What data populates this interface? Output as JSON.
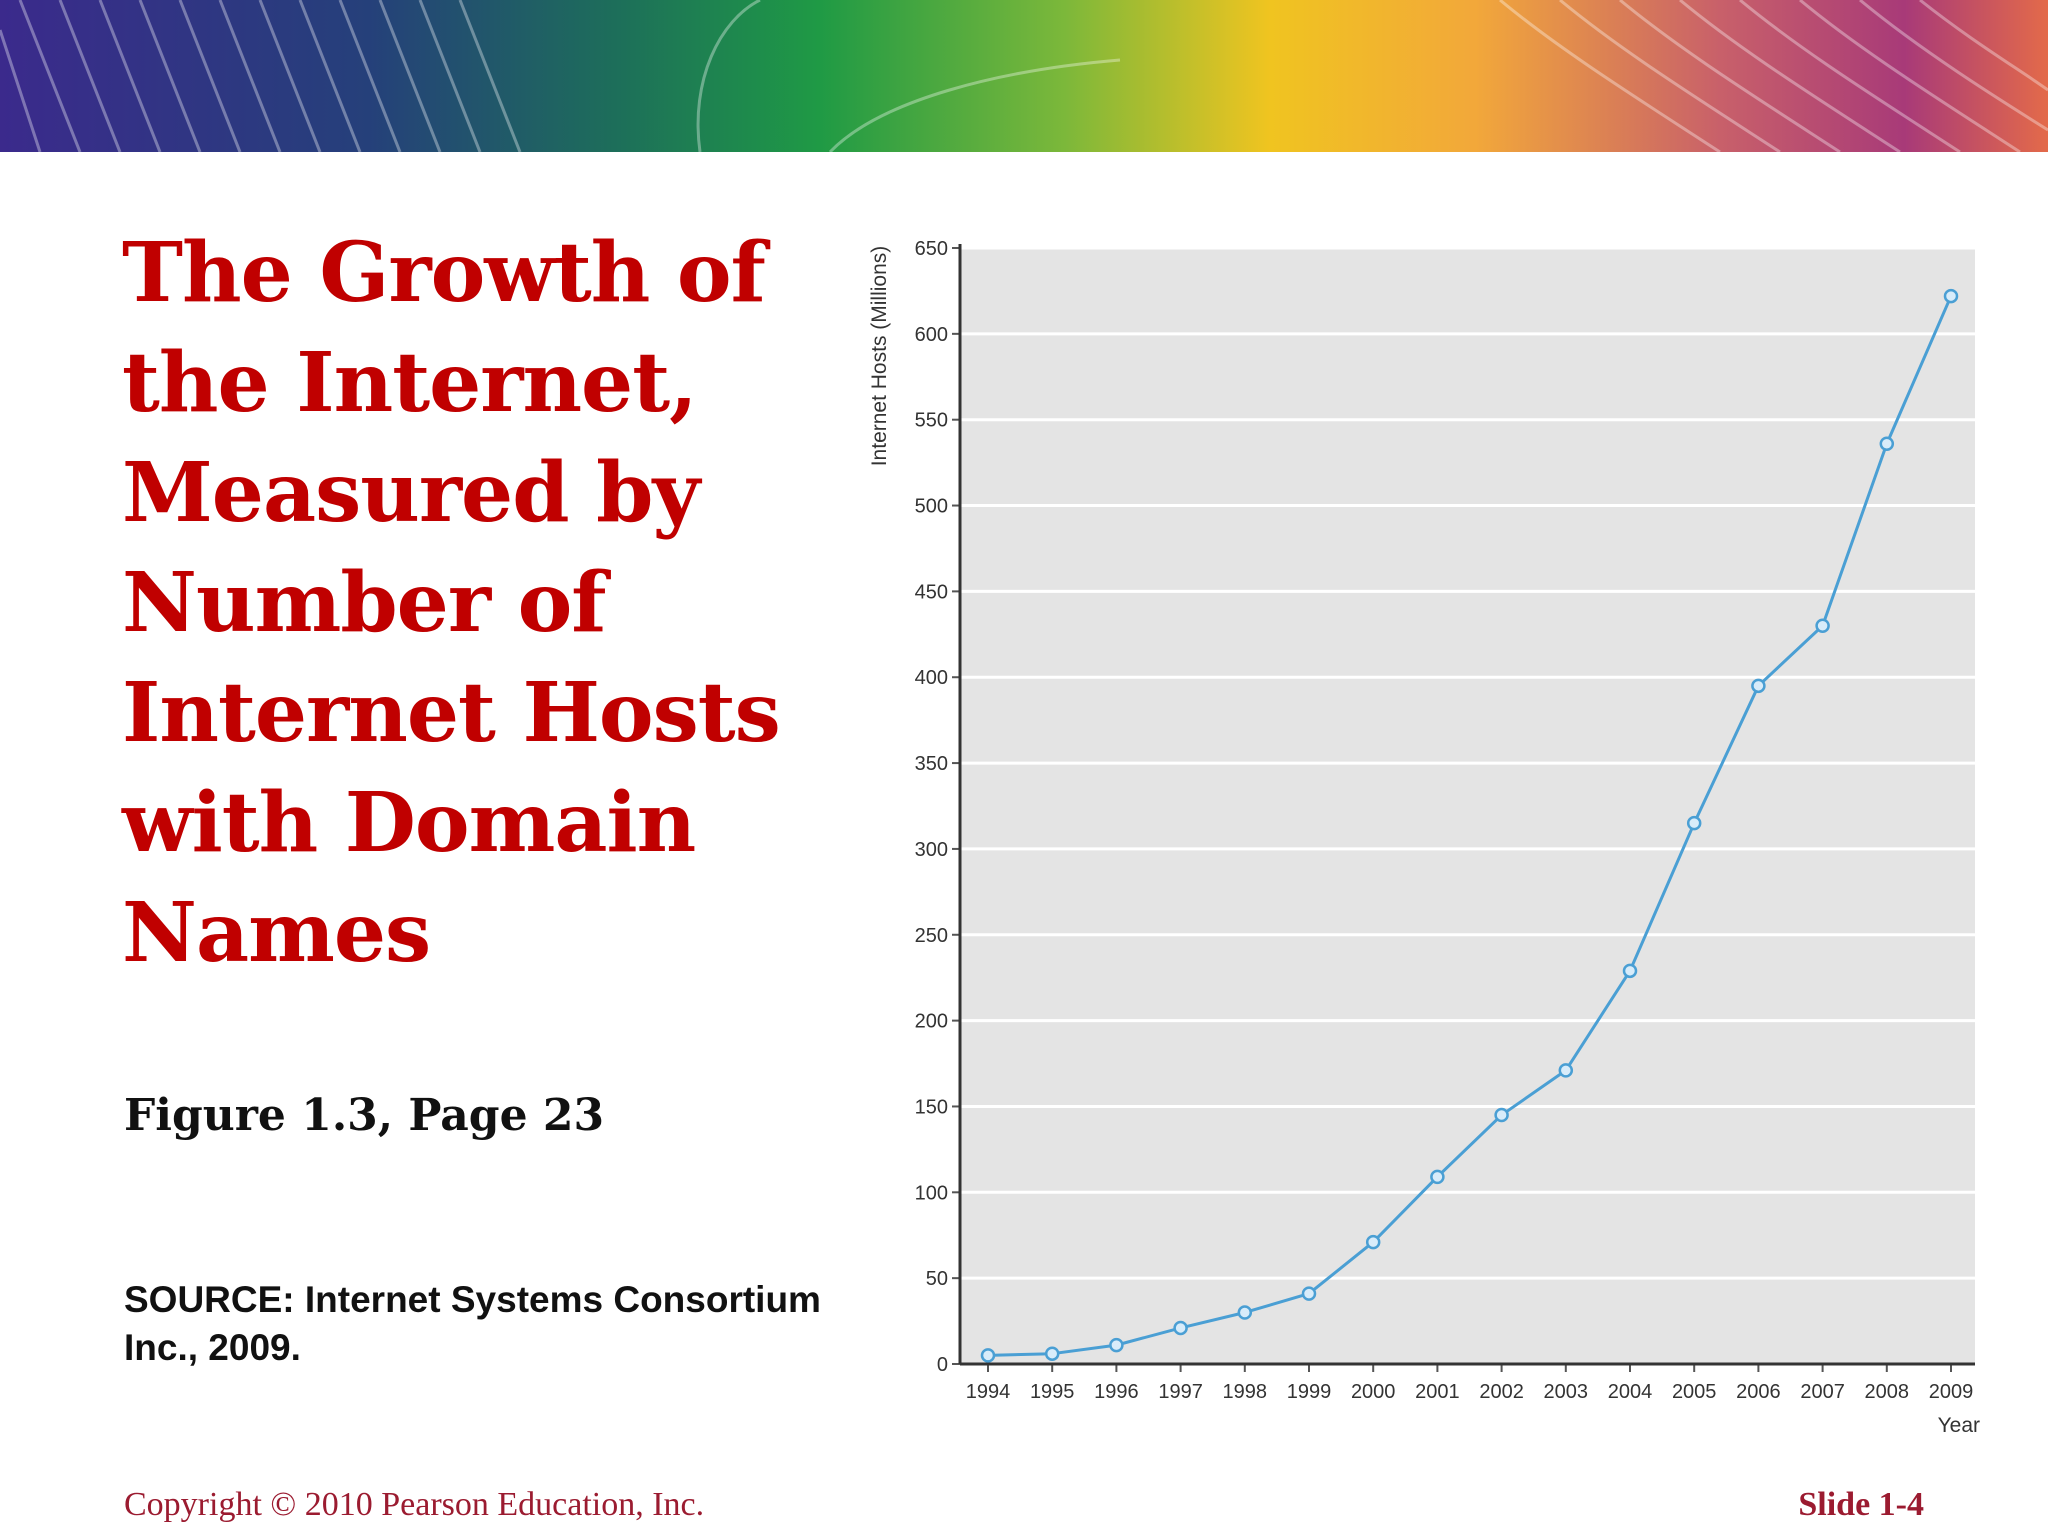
{
  "slide": {
    "title": "The Growth of the Internet, Measured by Number of Internet Hosts with Domain Names",
    "figure_ref": "Figure 1.3, Page 23",
    "source": "SOURCE: Internet Systems Consortium Inc., 2009.",
    "copyright": "Copyright © 2010 Pearson Education, Inc.",
    "slide_number": "Slide 1-4"
  },
  "colors": {
    "title": "#c00000",
    "footer": "#9b1b30",
    "plot_background": "#e4e4e4",
    "gridline": "#ffffff",
    "line": "#4a9fd4",
    "marker_fill": "#d8ecfa"
  },
  "chart_data": {
    "type": "line",
    "title": "",
    "xlabel": "Year",
    "ylabel": "Internet Hosts (Millions)",
    "categories": [
      "1994",
      "1995",
      "1996",
      "1997",
      "1998",
      "1999",
      "2000",
      "2001",
      "2002",
      "2003",
      "2004",
      "2005",
      "2006",
      "2007",
      "2008",
      "2009"
    ],
    "values": [
      5,
      6,
      11,
      21,
      30,
      41,
      71,
      109,
      145,
      171,
      229,
      315,
      395,
      430,
      536,
      622
    ],
    "ylim": [
      0,
      650
    ],
    "yticks": [
      0,
      50,
      100,
      150,
      200,
      250,
      300,
      350,
      400,
      450,
      500,
      550,
      600,
      650
    ],
    "grid": true,
    "legend": "none"
  }
}
